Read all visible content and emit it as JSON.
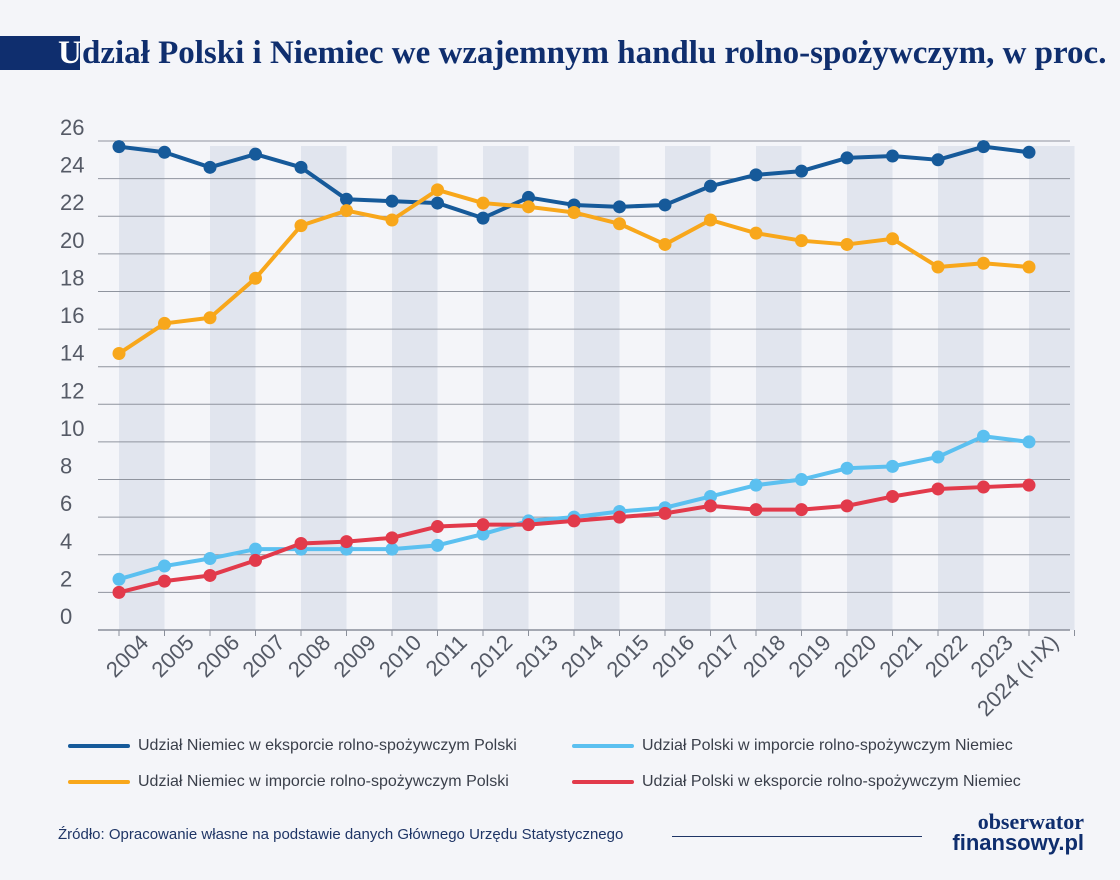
{
  "title": {
    "initial": "U",
    "rest": "dział Polski i Niemiec we wzajemnym handlu rolno-spożywczym, w proc."
  },
  "chart_data": {
    "type": "line",
    "title": "Udział Polski i Niemiec we wzajemnym handlu rolno-spożywczym, w proc.",
    "categories": [
      "2004",
      "2005",
      "2006",
      "2007",
      "2008",
      "2009",
      "2010",
      "2011",
      "2012",
      "2013",
      "2014",
      "2015",
      "2016",
      "2017",
      "2018",
      "2019",
      "2020",
      "2021",
      "2022",
      "2023",
      "2024 (I-IX)"
    ],
    "y_ticks": [
      "0",
      "2",
      "4",
      "6",
      "8",
      "10",
      "12",
      "14",
      "16",
      "18",
      "20",
      "22",
      "24",
      "26"
    ],
    "ylim": [
      0,
      26
    ],
    "grid": true,
    "legend_position": "bottom",
    "series": [
      {
        "name": "Udział Niemiec w eksporcie rolno-spożywczym Polski",
        "color": "#165a9a",
        "values": [
          25.7,
          25.4,
          24.6,
          25.3,
          24.6,
          22.9,
          22.8,
          22.7,
          21.9,
          23.0,
          22.6,
          22.5,
          22.6,
          23.6,
          24.2,
          24.4,
          25.1,
          25.2,
          25.0,
          25.7,
          25.4
        ]
      },
      {
        "name": "Udział Polski w imporcie rolno-spożywczym Niemiec",
        "color": "#5bc0f0",
        "values": [
          2.7,
          3.4,
          3.8,
          4.3,
          4.3,
          4.3,
          4.3,
          4.5,
          5.1,
          5.8,
          6.0,
          6.3,
          6.5,
          7.1,
          7.7,
          8.0,
          8.6,
          8.7,
          9.2,
          10.3,
          10.0
        ]
      },
      {
        "name": "Udział Niemiec w imporcie rolno-spożywczym Polski",
        "color": "#f8a71b",
        "values": [
          14.7,
          16.3,
          16.6,
          18.7,
          21.5,
          22.3,
          21.8,
          23.4,
          22.7,
          22.5,
          22.2,
          21.6,
          20.5,
          21.8,
          21.1,
          20.7,
          20.5,
          20.8,
          19.3,
          19.5,
          19.3
        ]
      },
      {
        "name": "Udział Polski w eksporcie rolno-spożywczym Niemiec",
        "color": "#e23a4b",
        "values": [
          2.0,
          2.6,
          2.9,
          3.7,
          4.6,
          4.7,
          4.9,
          5.5,
          5.6,
          5.6,
          5.8,
          6.0,
          6.2,
          6.6,
          6.4,
          6.4,
          6.6,
          7.1,
          7.5,
          7.6,
          7.7
        ]
      }
    ],
    "source": "Źródło: Opracowanie własne na podstawie danych Głównego Urzędu Statystycznego"
  },
  "logo": {
    "top": "obserwator",
    "bottom": "finansowy.pl"
  }
}
